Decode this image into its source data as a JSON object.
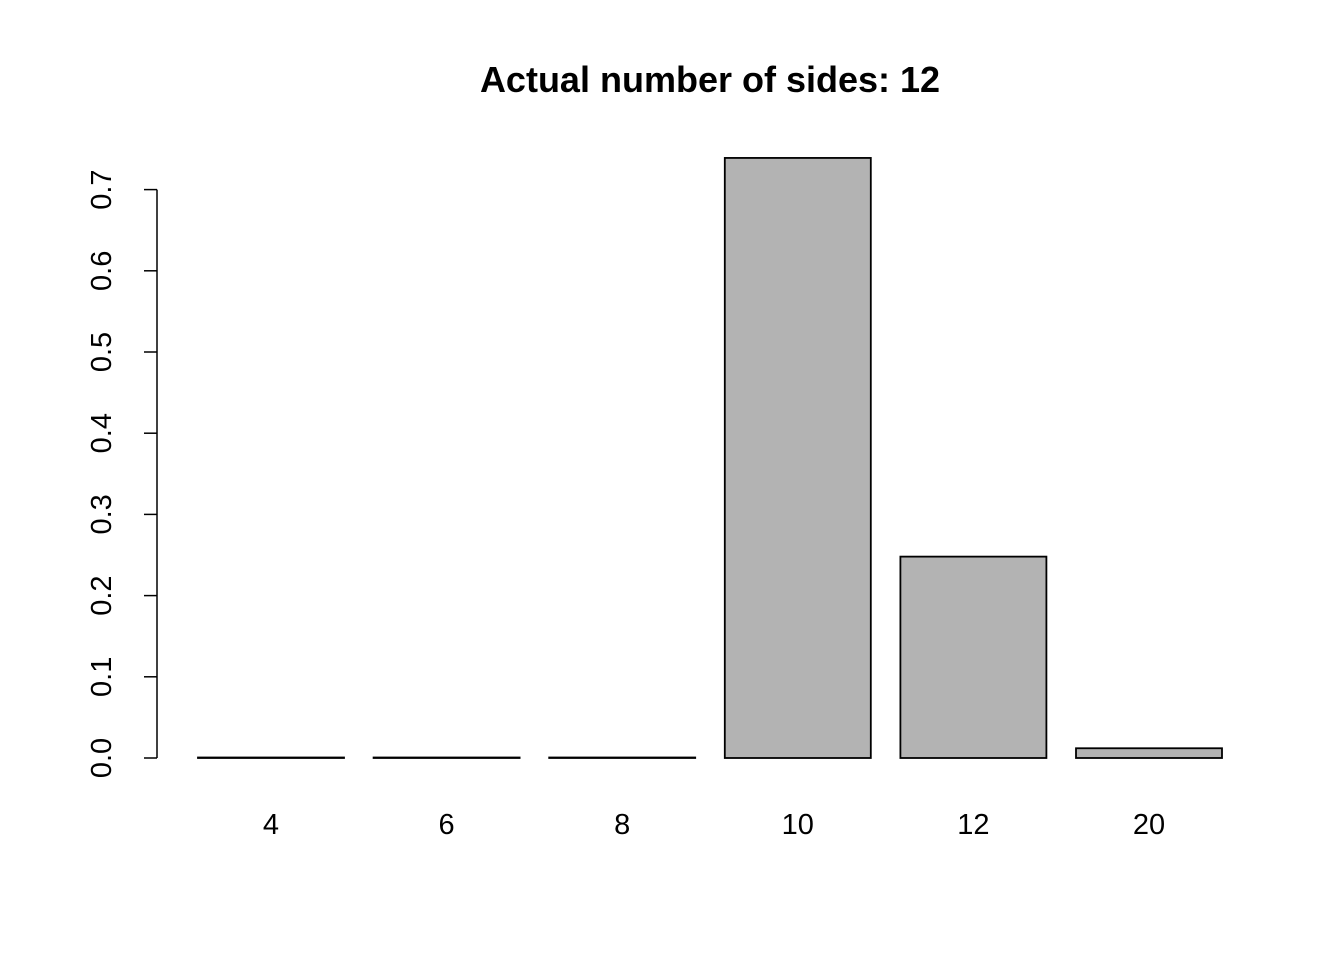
{
  "chart_data": {
    "type": "bar",
    "title": "Actual number of sides: 12",
    "xlabel": "",
    "ylabel": "",
    "categories": [
      "4",
      "6",
      "8",
      "10",
      "12",
      "20"
    ],
    "values": [
      0.0,
      0.0,
      0.0,
      0.739,
      0.248,
      0.012
    ],
    "ylim": [
      0,
      0.7
    ],
    "yticks": [
      "0.0",
      "0.1",
      "0.2",
      "0.3",
      "0.4",
      "0.5",
      "0.6",
      "0.7"
    ],
    "bar_color": "#b3b3b3",
    "border_color": "#000000",
    "grid": false,
    "legend": "none"
  }
}
